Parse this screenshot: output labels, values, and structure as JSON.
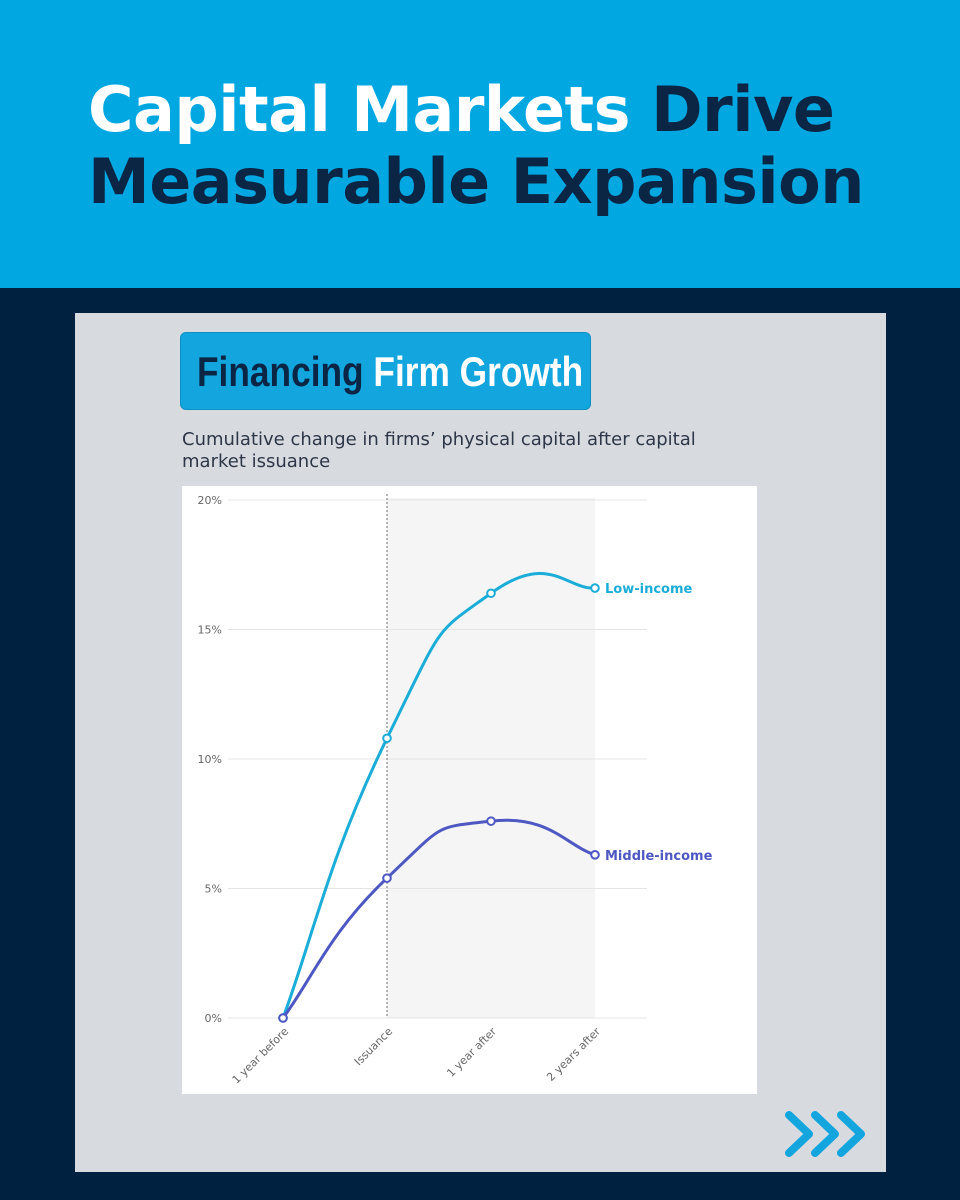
{
  "header": {
    "title_white": "Capital Markets",
    "title_dark_1": "Drive",
    "title_dark_2": "Measurable Expansion"
  },
  "card": {
    "badge_dark": "Financing",
    "badge_light": "Firm Growth",
    "subtitle": "Cumulative change in firms’ physical capital after capital market issuance"
  },
  "footer": {
    "icon": "triple-chevron-right-icon"
  },
  "colors": {
    "header_bg": "#00A7E1",
    "page_bg": "#00213F",
    "low_income": "#1AADD8",
    "middle_income": "#4E58C2"
  },
  "chart_data": {
    "type": "line",
    "categories": [
      "1 year before",
      "Issuance",
      "1 year after",
      "2 years after"
    ],
    "series": [
      {
        "name": "Low-income",
        "values": [
          0,
          10.8,
          16.4,
          16.6
        ]
      },
      {
        "name": "Middle-income",
        "values": [
          0,
          5.4,
          7.6,
          6.3
        ]
      }
    ],
    "ylim": [
      0,
      20
    ],
    "yticks": [
      "0%",
      "5%",
      "10%",
      "15%",
      "20%"
    ],
    "title": "",
    "xlabel": "",
    "ylabel": "",
    "grid": "horizontal",
    "shaded_region": "Issuance to 2 years after",
    "vertical_marker": "Issuance",
    "legend": "labels at line ends"
  }
}
